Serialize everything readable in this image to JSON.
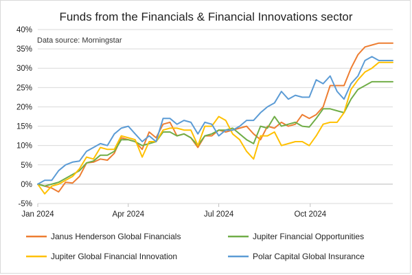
{
  "chart_data": {
    "type": "line",
    "title": "Funds from the Financials & Financial Innovations sector",
    "note": "Data source: Morningstar",
    "xlabel": "",
    "ylabel": "",
    "ylim": [
      -5,
      40
    ],
    "ytick_step": 5,
    "ytick_suffix": "%",
    "xlim": [
      "2024-01-01",
      "2024-12-23"
    ],
    "xticks": [
      {
        "date": "2024-01-01",
        "label": "Jan 2024"
      },
      {
        "date": "2024-04-01",
        "label": "Apr 2024"
      },
      {
        "date": "2024-07-01",
        "label": "Jul 2024"
      },
      {
        "date": "2024-10-01",
        "label": "Oct 2024"
      }
    ],
    "grid": true,
    "legend_position": "bottom",
    "x": [
      "2024-01-01",
      "2024-01-08",
      "2024-01-15",
      "2024-01-22",
      "2024-01-29",
      "2024-02-05",
      "2024-02-12",
      "2024-02-19",
      "2024-02-26",
      "2024-03-04",
      "2024-03-11",
      "2024-03-18",
      "2024-03-25",
      "2024-04-01",
      "2024-04-08",
      "2024-04-15",
      "2024-04-22",
      "2024-04-29",
      "2024-05-06",
      "2024-05-13",
      "2024-05-20",
      "2024-05-27",
      "2024-06-03",
      "2024-06-10",
      "2024-06-17",
      "2024-06-24",
      "2024-07-01",
      "2024-07-08",
      "2024-07-15",
      "2024-07-22",
      "2024-07-29",
      "2024-08-05",
      "2024-08-12",
      "2024-08-19",
      "2024-08-26",
      "2024-09-02",
      "2024-09-09",
      "2024-09-16",
      "2024-09-23",
      "2024-09-30",
      "2024-10-07",
      "2024-10-14",
      "2024-10-21",
      "2024-10-28",
      "2024-11-04",
      "2024-11-11",
      "2024-11-18",
      "2024-11-25",
      "2024-12-02",
      "2024-12-09",
      "2024-12-16",
      "2024-12-23"
    ],
    "series": [
      {
        "name": "Janus Henderson Global Financials",
        "color": "#ed7d31",
        "values": [
          0,
          -0.5,
          -1,
          -2,
          0.5,
          0.3,
          2,
          5.5,
          5.7,
          6.5,
          6.2,
          8,
          12,
          11.5,
          11,
          9,
          13.5,
          12,
          15.5,
          16,
          12.5,
          13,
          12,
          9.5,
          12.5,
          12.5,
          14,
          13.5,
          14,
          14.5,
          15,
          13,
          11.5,
          15,
          14.5,
          16,
          15,
          15.5,
          18,
          17,
          18,
          20,
          25.5,
          25.5,
          25.5,
          30,
          33.5,
          35.5,
          36,
          36.5,
          36.5,
          36.5
        ]
      },
      {
        "name": "Jupiter Financial Opportunities",
        "color": "#70ad47",
        "values": [
          0,
          -0.5,
          0,
          0.5,
          1.5,
          2.5,
          3.5,
          5.5,
          6,
          7.5,
          7.5,
          8.5,
          11.5,
          11.5,
          11,
          10,
          10.5,
          11,
          13.5,
          13.5,
          12.5,
          13,
          12,
          10,
          12.5,
          13,
          14,
          14,
          14.5,
          13,
          11.5,
          10.5,
          15,
          14.5,
          17.5,
          15,
          15.5,
          16,
          15,
          14.8,
          17,
          19.5,
          19.5,
          19,
          18.5,
          22,
          24.5,
          25.5,
          26.5,
          26.5,
          26.5,
          26.5
        ]
      },
      {
        "name": "Jupiter Global Financial Innovation",
        "color": "#ffc000",
        "values": [
          0,
          -2.5,
          -0.5,
          0,
          1,
          2,
          4,
          7,
          6.5,
          9.5,
          9,
          9,
          12.5,
          12,
          11.5,
          7,
          11,
          11,
          14,
          14.5,
          14.5,
          14,
          14,
          10,
          15,
          15,
          17.5,
          16.5,
          13,
          11.5,
          8.5,
          6.5,
          12.5,
          12.5,
          13.5,
          10,
          10.5,
          11,
          11,
          10,
          12.5,
          15.5,
          16,
          16,
          18.5,
          24.5,
          27,
          29,
          30,
          31.5,
          31.5,
          31.5
        ]
      },
      {
        "name": "Polar Capital Global Insurance",
        "color": "#5b9bd5",
        "values": [
          0,
          1,
          1,
          3.5,
          5,
          5.7,
          6,
          8.5,
          9.5,
          10.5,
          10,
          13,
          14.5,
          15,
          13,
          11,
          12.5,
          11,
          17,
          17,
          15.5,
          16.5,
          16,
          13,
          16,
          15.5,
          12.5,
          14,
          14,
          15,
          16.5,
          16.5,
          18.5,
          20,
          21,
          24,
          22,
          23,
          22.5,
          22.5,
          27,
          26,
          28,
          24,
          22,
          26,
          28,
          32,
          33,
          32,
          32,
          32
        ]
      }
    ]
  }
}
